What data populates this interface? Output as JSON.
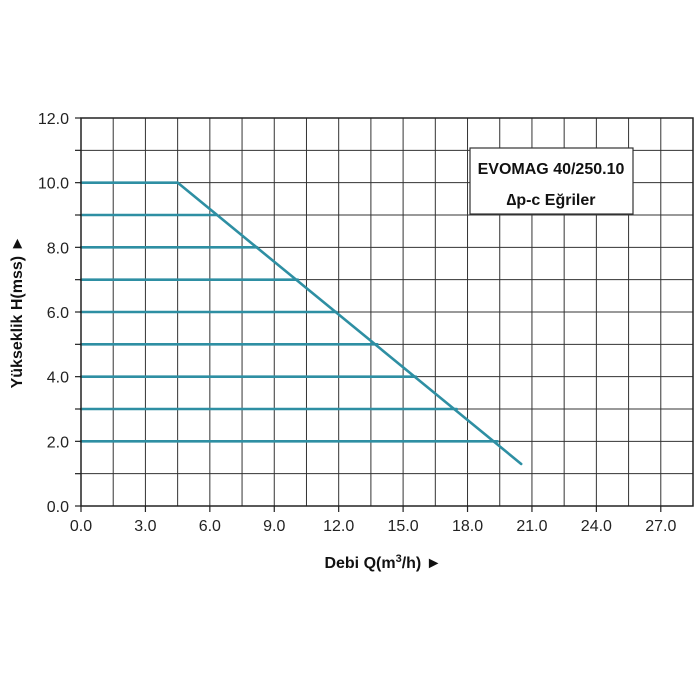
{
  "chart_data": {
    "type": "line",
    "title": "EVOMAG 40/250.10",
    "subtitle": "∆p-c Eğriler",
    "xlabel": "Debi Q(m",
    "xlabel_sup": "3",
    "xlabel_tail": "/h) ►",
    "ylabel": "Yükseklik H(mss) ►",
    "xlim": [
      0,
      28.5
    ],
    "ylim": [
      0,
      12
    ],
    "x_ticks": [
      0,
      3,
      6,
      9,
      12,
      15,
      18,
      21,
      24,
      27
    ],
    "x_tick_labels": [
      "0.0",
      "3.0",
      "6.0",
      "9.0",
      "12.0",
      "15.0",
      "18.0",
      "21.0",
      "24.0",
      "27.0"
    ],
    "y_ticks": [
      0,
      2,
      4,
      6,
      8,
      10,
      12
    ],
    "y_tick_labels": [
      "0.0",
      "2.0",
      "4.0",
      "6.0",
      "8.0",
      "10.0",
      "12.0"
    ],
    "grid": true,
    "colors": {
      "series": "#2e8fa3",
      "grid": "#333333",
      "axis": "#222222"
    },
    "series": [
      {
        "x": [
          0.0,
          4.5
        ],
        "y": [
          10.0,
          10.0
        ]
      },
      {
        "x": [
          0.0,
          6.3
        ],
        "y": [
          9.0,
          9.0
        ]
      },
      {
        "x": [
          0.0,
          8.2
        ],
        "y": [
          8.0,
          8.0
        ]
      },
      {
        "x": [
          0.0,
          10.1
        ],
        "y": [
          7.0,
          7.0
        ]
      },
      {
        "x": [
          0.0,
          11.9
        ],
        "y": [
          6.0,
          6.0
        ]
      },
      {
        "x": [
          0.0,
          13.8
        ],
        "y": [
          5.0,
          5.0
        ]
      },
      {
        "x": [
          0.0,
          15.6
        ],
        "y": [
          4.0,
          4.0
        ]
      },
      {
        "x": [
          0.0,
          17.5
        ],
        "y": [
          3.0,
          3.0
        ]
      },
      {
        "x": [
          0.0,
          19.4
        ],
        "y": [
          2.0,
          2.0
        ]
      },
      {
        "x": [
          4.5,
          20.5
        ],
        "y": [
          10.0,
          1.3
        ]
      }
    ]
  }
}
